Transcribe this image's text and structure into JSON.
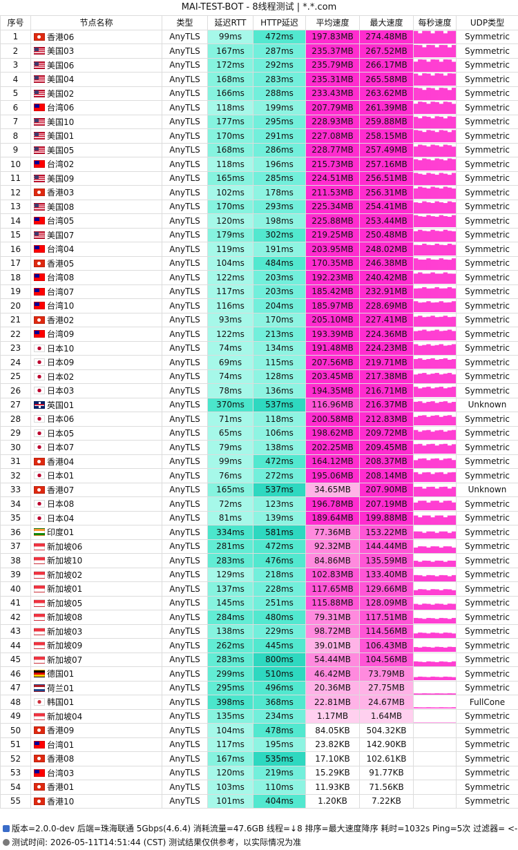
{
  "title": "MAI-TEST-BOT - 8线程测试 | *.*.com",
  "headers": [
    "序号",
    "节点名称",
    "类型",
    "延迟RTT",
    "HTTP延迟",
    "平均速度",
    "最大速度",
    "每秒速度",
    "UDP类型"
  ],
  "rows": [
    {
      "id": "1",
      "flag": "HK",
      "name": "香港06",
      "type": "AnyTLS",
      "rtt": "99ms",
      "http": "472ms",
      "avg": "197.83MB",
      "max": "274.48MB",
      "speed": 0.99,
      "udp": "Symmetric"
    },
    {
      "id": "2",
      "flag": "US",
      "name": "美国03",
      "type": "AnyTLS",
      "rtt": "167ms",
      "http": "287ms",
      "avg": "235.37MB",
      "max": "267.52MB",
      "speed": 0.97,
      "udp": "Symmetric"
    },
    {
      "id": "3",
      "flag": "US",
      "name": "美国06",
      "type": "AnyTLS",
      "rtt": "172ms",
      "http": "292ms",
      "avg": "235.79MB",
      "max": "266.17MB",
      "speed": 0.97,
      "udp": "Symmetric"
    },
    {
      "id": "4",
      "flag": "US",
      "name": "美国04",
      "type": "AnyTLS",
      "rtt": "168ms",
      "http": "283ms",
      "avg": "235.31MB",
      "max": "265.58MB",
      "speed": 0.96,
      "udp": "Symmetric"
    },
    {
      "id": "5",
      "flag": "US",
      "name": "美国02",
      "type": "AnyTLS",
      "rtt": "166ms",
      "http": "288ms",
      "avg": "233.43MB",
      "max": "263.62MB",
      "speed": 0.96,
      "udp": "Symmetric"
    },
    {
      "id": "6",
      "flag": "TW",
      "name": "台湾06",
      "type": "AnyTLS",
      "rtt": "118ms",
      "http": "199ms",
      "avg": "207.79MB",
      "max": "261.39MB",
      "speed": 0.95,
      "udp": "Symmetric"
    },
    {
      "id": "7",
      "flag": "US",
      "name": "美国10",
      "type": "AnyTLS",
      "rtt": "177ms",
      "http": "295ms",
      "avg": "228.93MB",
      "max": "259.88MB",
      "speed": 0.94,
      "udp": "Symmetric"
    },
    {
      "id": "8",
      "flag": "US",
      "name": "美国01",
      "type": "AnyTLS",
      "rtt": "170ms",
      "http": "291ms",
      "avg": "227.08MB",
      "max": "258.15MB",
      "speed": 0.94,
      "udp": "Symmetric"
    },
    {
      "id": "9",
      "flag": "US",
      "name": "美国05",
      "type": "AnyTLS",
      "rtt": "168ms",
      "http": "286ms",
      "avg": "228.77MB",
      "max": "257.49MB",
      "speed": 0.93,
      "udp": "Symmetric"
    },
    {
      "id": "10",
      "flag": "TW",
      "name": "台湾02",
      "type": "AnyTLS",
      "rtt": "118ms",
      "http": "196ms",
      "avg": "215.73MB",
      "max": "257.16MB",
      "speed": 0.93,
      "udp": "Symmetric"
    },
    {
      "id": "11",
      "flag": "US",
      "name": "美国09",
      "type": "AnyTLS",
      "rtt": "165ms",
      "http": "285ms",
      "avg": "224.51MB",
      "max": "256.51MB",
      "speed": 0.93,
      "udp": "Symmetric"
    },
    {
      "id": "12",
      "flag": "HK",
      "name": "香港03",
      "type": "AnyTLS",
      "rtt": "102ms",
      "http": "178ms",
      "avg": "211.53MB",
      "max": "256.31MB",
      "speed": 0.93,
      "udp": "Symmetric"
    },
    {
      "id": "13",
      "flag": "US",
      "name": "美国08",
      "type": "AnyTLS",
      "rtt": "170ms",
      "http": "293ms",
      "avg": "225.34MB",
      "max": "254.41MB",
      "speed": 0.92,
      "udp": "Symmetric"
    },
    {
      "id": "14",
      "flag": "TW",
      "name": "台湾05",
      "type": "AnyTLS",
      "rtt": "120ms",
      "http": "198ms",
      "avg": "225.88MB",
      "max": "253.44MB",
      "speed": 0.92,
      "udp": "Symmetric"
    },
    {
      "id": "15",
      "flag": "US",
      "name": "美国07",
      "type": "AnyTLS",
      "rtt": "179ms",
      "http": "302ms",
      "avg": "219.25MB",
      "max": "250.48MB",
      "speed": 0.91,
      "udp": "Symmetric"
    },
    {
      "id": "16",
      "flag": "TW",
      "name": "台湾04",
      "type": "AnyTLS",
      "rtt": "119ms",
      "http": "191ms",
      "avg": "203.95MB",
      "max": "248.02MB",
      "speed": 0.9,
      "udp": "Symmetric"
    },
    {
      "id": "17",
      "flag": "HK",
      "name": "香港05",
      "type": "AnyTLS",
      "rtt": "104ms",
      "http": "484ms",
      "avg": "170.35MB",
      "max": "246.38MB",
      "speed": 0.89,
      "udp": "Symmetric"
    },
    {
      "id": "18",
      "flag": "TW",
      "name": "台湾08",
      "type": "AnyTLS",
      "rtt": "122ms",
      "http": "203ms",
      "avg": "192.23MB",
      "max": "240.42MB",
      "speed": 0.87,
      "udp": "Symmetric"
    },
    {
      "id": "19",
      "flag": "TW",
      "name": "台湾07",
      "type": "AnyTLS",
      "rtt": "117ms",
      "http": "203ms",
      "avg": "185.42MB",
      "max": "232.91MB",
      "speed": 0.85,
      "udp": "Symmetric"
    },
    {
      "id": "20",
      "flag": "TW",
      "name": "台湾10",
      "type": "AnyTLS",
      "rtt": "116ms",
      "http": "204ms",
      "avg": "185.97MB",
      "max": "228.69MB",
      "speed": 0.83,
      "udp": "Symmetric"
    },
    {
      "id": "21",
      "flag": "HK",
      "name": "香港02",
      "type": "AnyTLS",
      "rtt": "93ms",
      "http": "170ms",
      "avg": "205.10MB",
      "max": "227.41MB",
      "speed": 0.83,
      "udp": "Symmetric"
    },
    {
      "id": "22",
      "flag": "TW",
      "name": "台湾09",
      "type": "AnyTLS",
      "rtt": "122ms",
      "http": "213ms",
      "avg": "193.39MB",
      "max": "224.36MB",
      "speed": 0.82,
      "udp": "Symmetric"
    },
    {
      "id": "23",
      "flag": "JP",
      "name": "日本10",
      "type": "AnyTLS",
      "rtt": "74ms",
      "http": "134ms",
      "avg": "191.48MB",
      "max": "224.23MB",
      "speed": 0.82,
      "udp": "Symmetric"
    },
    {
      "id": "24",
      "flag": "JP",
      "name": "日本09",
      "type": "AnyTLS",
      "rtt": "69ms",
      "http": "115ms",
      "avg": "207.56MB",
      "max": "219.71MB",
      "speed": 0.8,
      "udp": "Symmetric"
    },
    {
      "id": "25",
      "flag": "JP",
      "name": "日本02",
      "type": "AnyTLS",
      "rtt": "74ms",
      "http": "128ms",
      "avg": "203.45MB",
      "max": "217.38MB",
      "speed": 0.79,
      "udp": "Symmetric"
    },
    {
      "id": "26",
      "flag": "JP",
      "name": "日本03",
      "type": "AnyTLS",
      "rtt": "78ms",
      "http": "136ms",
      "avg": "194.35MB",
      "max": "216.71MB",
      "speed": 0.79,
      "udp": "Symmetric"
    },
    {
      "id": "27",
      "flag": "GB",
      "name": "英国01",
      "type": "AnyTLS",
      "rtt": "370ms",
      "http": "537ms",
      "avg": "116.96MB",
      "max": "216.37MB",
      "speed": 0.79,
      "udp": "Unknown"
    },
    {
      "id": "28",
      "flag": "JP",
      "name": "日本06",
      "type": "AnyTLS",
      "rtt": "71ms",
      "http": "118ms",
      "avg": "200.58MB",
      "max": "212.83MB",
      "speed": 0.78,
      "udp": "Symmetric"
    },
    {
      "id": "29",
      "flag": "JP",
      "name": "日本05",
      "type": "AnyTLS",
      "rtt": "65ms",
      "http": "106ms",
      "avg": "198.62MB",
      "max": "209.72MB",
      "speed": 0.76,
      "udp": "Symmetric"
    },
    {
      "id": "30",
      "flag": "JP",
      "name": "日本07",
      "type": "AnyTLS",
      "rtt": "79ms",
      "http": "138ms",
      "avg": "202.25MB",
      "max": "209.45MB",
      "speed": 0.76,
      "udp": "Symmetric"
    },
    {
      "id": "31",
      "flag": "HK",
      "name": "香港04",
      "type": "AnyTLS",
      "rtt": "99ms",
      "http": "472ms",
      "avg": "164.12MB",
      "max": "208.37MB",
      "speed": 0.76,
      "udp": "Symmetric"
    },
    {
      "id": "32",
      "flag": "JP",
      "name": "日本01",
      "type": "AnyTLS",
      "rtt": "76ms",
      "http": "272ms",
      "avg": "195.06MB",
      "max": "208.14MB",
      "speed": 0.76,
      "udp": "Symmetric"
    },
    {
      "id": "33",
      "flag": "HK",
      "name": "香港07",
      "type": "AnyTLS",
      "rtt": "165ms",
      "http": "537ms",
      "avg": "34.65MB",
      "max": "207.90MB",
      "speed": 0.76,
      "udp": "Unknown"
    },
    {
      "id": "34",
      "flag": "JP",
      "name": "日本08",
      "type": "AnyTLS",
      "rtt": "72ms",
      "http": "123ms",
      "avg": "196.78MB",
      "max": "207.19MB",
      "speed": 0.75,
      "udp": "Symmetric"
    },
    {
      "id": "35",
      "flag": "JP",
      "name": "日本04",
      "type": "AnyTLS",
      "rtt": "81ms",
      "http": "139ms",
      "avg": "189.64MB",
      "max": "199.88MB",
      "speed": 0.73,
      "udp": "Symmetric"
    },
    {
      "id": "36",
      "flag": "IN",
      "name": "印度01",
      "type": "AnyTLS",
      "rtt": "334ms",
      "http": "581ms",
      "avg": "77.36MB",
      "max": "153.22MB",
      "speed": 0.56,
      "udp": "Symmetric"
    },
    {
      "id": "37",
      "flag": "SG",
      "name": "新加坡06",
      "type": "AnyTLS",
      "rtt": "281ms",
      "http": "472ms",
      "avg": "92.32MB",
      "max": "144.44MB",
      "speed": 0.53,
      "udp": "Symmetric"
    },
    {
      "id": "38",
      "flag": "SG",
      "name": "新加坡10",
      "type": "AnyTLS",
      "rtt": "283ms",
      "http": "476ms",
      "avg": "84.86MB",
      "max": "135.59MB",
      "speed": 0.49,
      "udp": "Symmetric"
    },
    {
      "id": "39",
      "flag": "SG",
      "name": "新加坡02",
      "type": "AnyTLS",
      "rtt": "129ms",
      "http": "218ms",
      "avg": "102.83MB",
      "max": "133.40MB",
      "speed": 0.49,
      "udp": "Symmetric"
    },
    {
      "id": "40",
      "flag": "SG",
      "name": "新加坡01",
      "type": "AnyTLS",
      "rtt": "137ms",
      "http": "228ms",
      "avg": "117.65MB",
      "max": "129.66MB",
      "speed": 0.47,
      "udp": "Symmetric"
    },
    {
      "id": "41",
      "flag": "SG",
      "name": "新加坡05",
      "type": "AnyTLS",
      "rtt": "145ms",
      "http": "251ms",
      "avg": "115.88MB",
      "max": "128.09MB",
      "speed": 0.47,
      "udp": "Symmetric"
    },
    {
      "id": "42",
      "flag": "SG",
      "name": "新加坡08",
      "type": "AnyTLS",
      "rtt": "284ms",
      "http": "480ms",
      "avg": "79.31MB",
      "max": "117.51MB",
      "speed": 0.43,
      "udp": "Symmetric"
    },
    {
      "id": "43",
      "flag": "SG",
      "name": "新加坡03",
      "type": "AnyTLS",
      "rtt": "138ms",
      "http": "229ms",
      "avg": "98.72MB",
      "max": "114.56MB",
      "speed": 0.42,
      "udp": "Symmetric"
    },
    {
      "id": "44",
      "flag": "SG",
      "name": "新加坡09",
      "type": "AnyTLS",
      "rtt": "262ms",
      "http": "445ms",
      "avg": "39.01MB",
      "max": "106.43MB",
      "speed": 0.39,
      "udp": "Symmetric"
    },
    {
      "id": "45",
      "flag": "SG",
      "name": "新加坡07",
      "type": "AnyTLS",
      "rtt": "283ms",
      "http": "800ms",
      "avg": "54.44MB",
      "max": "104.56MB",
      "speed": 0.38,
      "udp": "Symmetric"
    },
    {
      "id": "46",
      "flag": "DE",
      "name": "德国01",
      "type": "AnyTLS",
      "rtt": "299ms",
      "http": "510ms",
      "avg": "46.42MB",
      "max": "73.79MB",
      "speed": 0.27,
      "udp": "Symmetric"
    },
    {
      "id": "47",
      "flag": "NL",
      "name": "荷兰01",
      "type": "AnyTLS",
      "rtt": "295ms",
      "http": "496ms",
      "avg": "20.36MB",
      "max": "27.75MB",
      "speed": 0.1,
      "udp": "Symmetric"
    },
    {
      "id": "48",
      "flag": "KR",
      "name": "韩国01",
      "type": "AnyTLS",
      "rtt": "398ms",
      "http": "368ms",
      "avg": "22.81MB",
      "max": "24.67MB",
      "speed": 0.09,
      "udp": "FullCone"
    },
    {
      "id": "49",
      "flag": "SG",
      "name": "新加坡04",
      "type": "AnyTLS",
      "rtt": "135ms",
      "http": "234ms",
      "avg": "1.17MB",
      "max": "1.64MB",
      "speed": 0.01,
      "udp": "Symmetric"
    },
    {
      "id": "50",
      "flag": "HK",
      "name": "香港09",
      "type": "AnyTLS",
      "rtt": "104ms",
      "http": "478ms",
      "avg": "84.05KB",
      "max": "504.32KB",
      "speed": 0,
      "udp": "Symmetric"
    },
    {
      "id": "51",
      "flag": "TW",
      "name": "台湾01",
      "type": "AnyTLS",
      "rtt": "117ms",
      "http": "195ms",
      "avg": "23.82KB",
      "max": "142.90KB",
      "speed": 0,
      "udp": "Symmetric"
    },
    {
      "id": "52",
      "flag": "HK",
      "name": "香港08",
      "type": "AnyTLS",
      "rtt": "167ms",
      "http": "535ms",
      "avg": "17.10KB",
      "max": "102.61KB",
      "speed": 0,
      "udp": "Symmetric"
    },
    {
      "id": "53",
      "flag": "TW",
      "name": "台湾03",
      "type": "AnyTLS",
      "rtt": "120ms",
      "http": "219ms",
      "avg": "15.29KB",
      "max": "91.77KB",
      "speed": 0,
      "udp": "Symmetric"
    },
    {
      "id": "54",
      "flag": "HK",
      "name": "香港01",
      "type": "AnyTLS",
      "rtt": "103ms",
      "http": "110ms",
      "avg": "11.93KB",
      "max": "71.56KB",
      "speed": 0,
      "udp": "Symmetric"
    },
    {
      "id": "55",
      "flag": "HK",
      "name": "香港10",
      "type": "AnyTLS",
      "rtt": "101ms",
      "http": "404ms",
      "avg": "1.20KB",
      "max": "7.22KB",
      "speed": 0,
      "udp": "Symmetric"
    }
  ],
  "footer": {
    "line1": "版本=2.0.0-dev  后端=珠海联通 5Gbps(4.6.4) 消耗流量=47.6GB  线程=↓8  排序=最大速度降序  耗时=1032s  Ping=5次  过滤器= <->",
    "line2": "测试时间: 2026-05-11T14:51:44 (CST)  测试结果仅供参考，以实际情况为准"
  },
  "colors": {
    "rtt_base": "#7ff5df",
    "http_base": "#5ef0d6",
    "speed_strong": "#ff2ccf",
    "speed_mid": "#ff80dc",
    "speed_light": "#ffc4ea",
    "spark": "#ff3fd2"
  }
}
